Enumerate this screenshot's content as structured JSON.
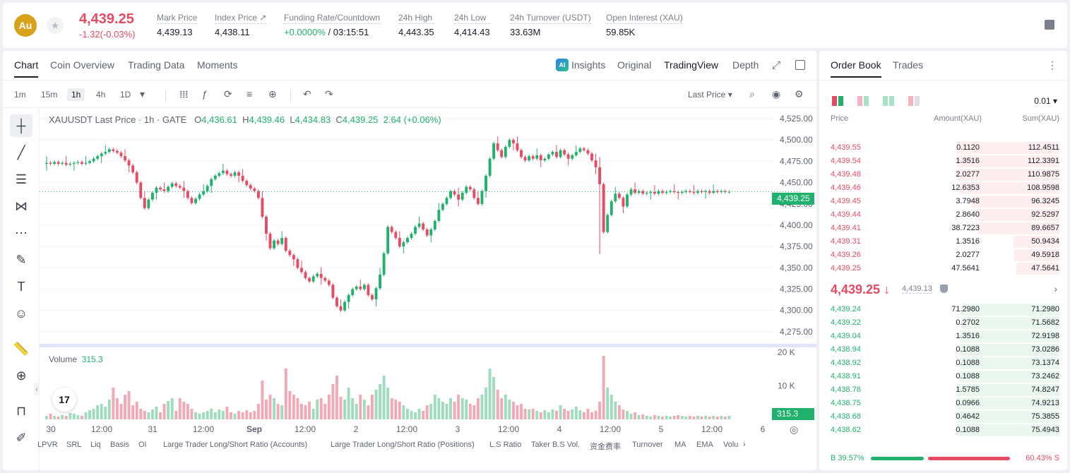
{
  "header": {
    "coin_logo": "Au",
    "star_icon": "★",
    "last_price": "4,439.25",
    "change": "-1.32(-0.03%)",
    "stats": [
      {
        "label": "Mark Price",
        "value": "4,439.13"
      },
      {
        "label": "Index Price ↗",
        "value": "4,438.11"
      },
      {
        "label": "Funding Rate/Countdown",
        "value_green": "+0.0000%",
        "value": " / 03:15:51"
      },
      {
        "label": "24h High",
        "value": "4,443.35"
      },
      {
        "label": "24h Low",
        "value": "4,414.43"
      },
      {
        "label": "24h Turnover (USDT)",
        "value": "33.63M"
      },
      {
        "label": "Open Interest (XAU)",
        "value": "59.85K"
      }
    ]
  },
  "chart_tabs": {
    "left": [
      "Chart",
      "Coin Overview",
      "Trading Data",
      "Moments"
    ],
    "ai_badge": "AI",
    "right": [
      "Insights",
      "Original",
      "TradingView",
      "Depth"
    ],
    "expand_icon": "⤢"
  },
  "toolbar": {
    "timeframes": [
      "1m",
      "15m",
      "1h",
      "4h",
      "1D"
    ],
    "dropdown_caret": "▾",
    "icons": [
      "𝍖",
      "ƒ",
      "⟳",
      "≡",
      "⊕",
      "↶",
      "↷"
    ],
    "price_type": "Last Price ▾",
    "right_icons": [
      "⌕",
      "◉",
      "⚙"
    ]
  },
  "draw_tools": [
    "┼",
    "╱",
    "☰",
    "⋈",
    "⋯",
    "✎",
    "T",
    "☺",
    "📏",
    "⊕",
    "⊓",
    "✐"
  ],
  "legend": {
    "symbol": "XAUUSDT Last Price · 1h · GATE",
    "o_label": "O",
    "o": "4,436.61",
    "h_label": "H",
    "h": "4,439.46",
    "l_label": "L",
    "l": "4,434.83",
    "c_label": "C",
    "c": "4,439.25",
    "chg": "2.64 (+0.06%)"
  },
  "volume_legend": {
    "label": "Volume",
    "value": "315.3"
  },
  "tv_logo": "17",
  "price_tags": {
    "price": "4,439.25",
    "volume": "315.3"
  },
  "goto_icon": "◎",
  "collapse_icon": "‹",
  "chart_data": {
    "type": "candlestick",
    "title": "XAUUSDT Last Price · 1h · GATE",
    "y_ticks": [
      "4,525.00",
      "4,500.00",
      "4,475.00",
      "4,450.00",
      "4,425.00",
      "4,400.00",
      "4,375.00",
      "4,350.00",
      "4,325.00",
      "4,300.00",
      "4,275.00"
    ],
    "y_tick_values": [
      4525,
      4500,
      4475,
      4450,
      4425,
      4400,
      4375,
      4350,
      4325,
      4300,
      4275
    ],
    "vol_ticks": [
      "20 K",
      "10 K"
    ],
    "vol_tick_values": [
      20000,
      10000
    ],
    "x_ticks": [
      "30",
      "12:00",
      "31",
      "12:00",
      "Sep",
      "12:00",
      "2",
      "12:00",
      "3",
      "12:00",
      "4",
      "12:00",
      "5",
      "12:00",
      "6"
    ],
    "ylim": [
      4265,
      4530
    ],
    "volume_ylim": [
      0,
      21000
    ],
    "last_price": 4439.25,
    "closes": [
      4473,
      4472,
      4474,
      4472,
      4473,
      4471,
      4472,
      4473,
      4474,
      4472,
      4473,
      4475,
      4478,
      4481,
      4484,
      4486,
      4489,
      4487,
      4485,
      4481,
      4476,
      4470,
      4462,
      4450,
      4432,
      4420,
      4430,
      4438,
      4444,
      4442,
      4440,
      4445,
      4449,
      4446,
      4444,
      4440,
      4432,
      4426,
      4431,
      4436,
      4440,
      4446,
      4454,
      4458,
      4461,
      4464,
      4460,
      4458,
      4462,
      4458,
      4452,
      4447,
      4443,
      4440,
      4432,
      4410,
      4390,
      4373,
      4382,
      4378,
      4385,
      4370,
      4365,
      4360,
      4350,
      4345,
      4338,
      4334,
      4340,
      4343,
      4338,
      4335,
      4330,
      4315,
      4305,
      4300,
      4310,
      4318,
      4325,
      4328,
      4325,
      4330,
      4318,
      4313,
      4326,
      4342,
      4367,
      4398,
      4392,
      4385,
      4375,
      4380,
      4385,
      4390,
      4398,
      4402,
      4395,
      4388,
      4395,
      4405,
      4418,
      4425,
      4432,
      4440,
      4436,
      4430,
      4438,
      4445,
      4442,
      4432,
      4425,
      4440,
      4458,
      4478,
      4496,
      4488,
      4480,
      4492,
      4500,
      4496,
      4488,
      4480,
      4476,
      4481,
      4478,
      4482,
      4476,
      4478,
      4483,
      4486,
      4480,
      4488,
      4483,
      4478,
      4482,
      4486,
      4490,
      4488,
      4484,
      4476,
      4468,
      4448,
      4392,
      4412,
      4428,
      4437,
      4432,
      4422,
      4436,
      4442,
      4438,
      4440,
      4437,
      4438,
      4439,
      4437,
      4440,
      4438,
      4439,
      4440,
      4439,
      4438,
      4439,
      4440,
      4439,
      4438,
      4440,
      4439,
      4440,
      4438,
      4440,
      4439,
      4440,
      4439,
      4439.25
    ],
    "volumes": [
      0.05,
      0.08,
      0.05,
      0.04,
      0.06,
      0.05,
      0.09,
      0.08,
      0.06,
      0.05,
      0.1,
      0.13,
      0.15,
      0.2,
      0.22,
      0.18,
      0.28,
      0.45,
      0.3,
      0.22,
      0.35,
      0.4,
      0.2,
      0.25,
      0.15,
      0.12,
      0.1,
      0.14,
      0.18,
      0.1,
      0.22,
      0.26,
      0.3,
      0.12,
      0.3,
      0.25,
      0.22,
      0.15,
      0.1,
      0.08,
      0.1,
      0.12,
      0.15,
      0.1,
      0.14,
      0.12,
      0.18,
      0.1,
      0.08,
      0.12,
      0.1,
      0.13,
      0.1,
      0.12,
      0.22,
      0.55,
      0.28,
      0.35,
      0.3,
      0.22,
      0.2,
      0.72,
      0.4,
      0.35,
      0.3,
      0.22,
      0.2,
      0.25,
      0.15,
      0.28,
      0.3,
      0.22,
      0.35,
      0.5,
      0.62,
      0.32,
      0.28,
      0.45,
      0.3,
      0.22,
      0.35,
      0.28,
      0.2,
      0.35,
      0.42,
      0.5,
      0.62,
      0.45,
      0.3,
      0.28,
      0.25,
      0.2,
      0.15,
      0.12,
      0.1,
      0.15,
      0.12,
      0.2,
      0.22,
      0.35,
      0.3,
      0.25,
      0.22,
      0.3,
      0.25,
      0.35,
      0.3,
      0.28,
      0.22,
      0.2,
      0.3,
      0.35,
      0.45,
      0.72,
      0.6,
      0.42,
      0.3,
      0.35,
      0.28,
      0.25,
      0.2,
      0.22,
      0.15,
      0.14,
      0.15,
      0.12,
      0.1,
      0.13,
      0.1,
      0.14,
      0.12,
      0.2,
      0.15,
      0.12,
      0.14,
      0.18,
      0.13,
      0.1,
      0.15,
      0.1,
      0.12,
      0.25,
      0.9,
      0.45,
      0.35,
      0.25,
      0.2,
      0.14,
      0.12,
      0.08,
      0.1,
      0.06,
      0.07,
      0.05,
      0.04,
      0.06,
      0.05,
      0.04,
      0.05,
      0.04,
      0.05,
      0.06,
      0.05,
      0.04,
      0.05,
      0.04,
      0.05,
      0.04,
      0.05,
      0.04,
      0.05,
      0.04,
      0.05,
      0.04,
      0.05,
      0.015
    ]
  },
  "indicators": [
    "LPVR",
    "SRL",
    "Liq",
    "Basis",
    "OI",
    "Large Trader Long/Short Ratio (Accounts)",
    "Large Trader Long/Short Ratio (Positions)",
    "L.S Ratio",
    "Taker B.S Vol.",
    "资金费率",
    "Turnover",
    "MA",
    "EMA",
    "Volu",
    "›"
  ],
  "order_book": {
    "tabs": [
      "Order Book",
      "Trades"
    ],
    "more": "⋮",
    "precision": "0.01 ▾",
    "columns": [
      "Price",
      "Amount(XAU)",
      "Sum(XAU)"
    ],
    "asks": [
      {
        "price": "4,439.55",
        "amount": "0.1120",
        "sum": "112.4511",
        "depth": 1.0
      },
      {
        "price": "4,439.54",
        "amount": "1.3516",
        "sum": "112.3391",
        "depth": 1.0
      },
      {
        "price": "4,439.48",
        "amount": "2.0277",
        "sum": "110.9875",
        "depth": 0.99
      },
      {
        "price": "4,439.46",
        "amount": "12.6353",
        "sum": "108.9598",
        "depth": 0.97
      },
      {
        "price": "4,439.45",
        "amount": "3.7948",
        "sum": "96.3245",
        "depth": 0.86
      },
      {
        "price": "4,439.44",
        "amount": "2.8640",
        "sum": "92.5297",
        "depth": 0.82
      },
      {
        "price": "4,439.41",
        "amount": "38.7223",
        "sum": "89.6657",
        "depth": 0.8
      },
      {
        "price": "4,439.31",
        "amount": "1.3516",
        "sum": "50.9434",
        "depth": 0.45
      },
      {
        "price": "4,439.26",
        "amount": "2.0277",
        "sum": "49.5918",
        "depth": 0.44
      },
      {
        "price": "4,439.25",
        "amount": "47.5641",
        "sum": "47.5641",
        "depth": 0.42
      }
    ],
    "mid": {
      "price": "4,439.25 ↓",
      "mark": "4,439.13",
      "arrow": "›"
    },
    "bids": [
      {
        "price": "4,439.24",
        "amount": "71.2980",
        "sum": "71.2980",
        "depth": 0.95
      },
      {
        "price": "4,439.22",
        "amount": "0.2702",
        "sum": "71.5682",
        "depth": 0.95
      },
      {
        "price": "4,439.04",
        "amount": "1.3516",
        "sum": "72.9198",
        "depth": 0.97
      },
      {
        "price": "4,438.94",
        "amount": "0.1088",
        "sum": "73.0286",
        "depth": 0.97
      },
      {
        "price": "4,438.92",
        "amount": "0.1088",
        "sum": "73.1374",
        "depth": 0.97
      },
      {
        "price": "4,438.91",
        "amount": "0.1088",
        "sum": "73.2462",
        "depth": 0.98
      },
      {
        "price": "4,438.78",
        "amount": "1.5785",
        "sum": "74.8247",
        "depth": 1.0
      },
      {
        "price": "4,438.75",
        "amount": "0.0966",
        "sum": "74.9213",
        "depth": 1.0
      },
      {
        "price": "4,438.68",
        "amount": "0.4642",
        "sum": "75.3855",
        "depth": 1.0
      },
      {
        "price": "4,438.62",
        "amount": "0.1088",
        "sum": "75.4943",
        "depth": 1.0
      }
    ],
    "ratio": {
      "buy": "B 39.57%",
      "sell": "60.43% S",
      "buy_fraction": 0.3957
    },
    "colors": {
      "ask": "#e84a64",
      "bid": "#20b26c",
      "ask_bg": "#fdeef0",
      "bid_bg": "#e9f7ef"
    }
  }
}
